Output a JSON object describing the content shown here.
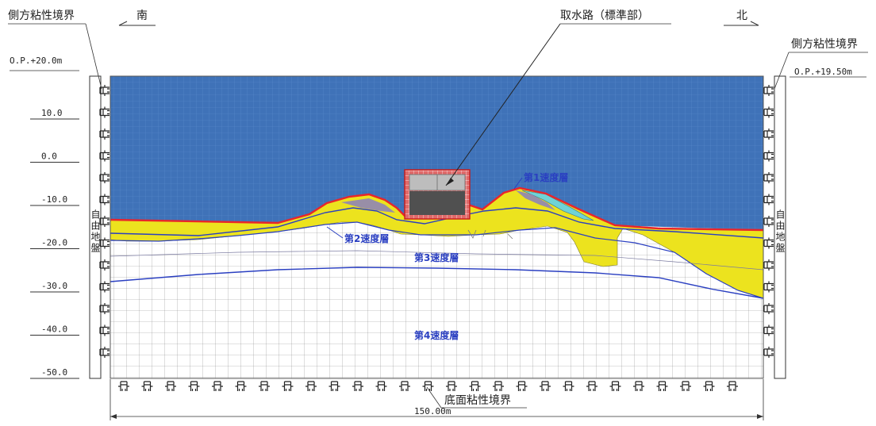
{
  "labels": {
    "south": "南",
    "north": "北",
    "lateral_left": "側方粘性境界",
    "lateral_right": "側方粘性境界",
    "intake": "取水路（標準部）",
    "bottom": "底面粘性境界",
    "free_left": "自由地盤",
    "free_right": "自由地盤",
    "width": "150.00m",
    "elev_left": "O.P.+20.0m",
    "elev_right": "O.P.+19.50m"
  },
  "layers": {
    "l1": "第1速度層",
    "l2": "第2速度層",
    "l3": "第3速度層",
    "l4": "第4速度層"
  },
  "axis": {
    "ticks": [
      "10.0",
      "0.0",
      "-10.0",
      "-20.0",
      "-30.0",
      "-40.0",
      "-50.0"
    ]
  },
  "colors": {
    "water": "#3f72b8",
    "yellow": "#ece31e",
    "ground": "#ffffff",
    "boundary": "#e8262b",
    "layer_line": "#2a3fc1",
    "structure_fill": "#bdbdbd",
    "structure_dark": "#505050",
    "cyan": "#6fd3d6",
    "violet": "#8a7fc0"
  }
}
